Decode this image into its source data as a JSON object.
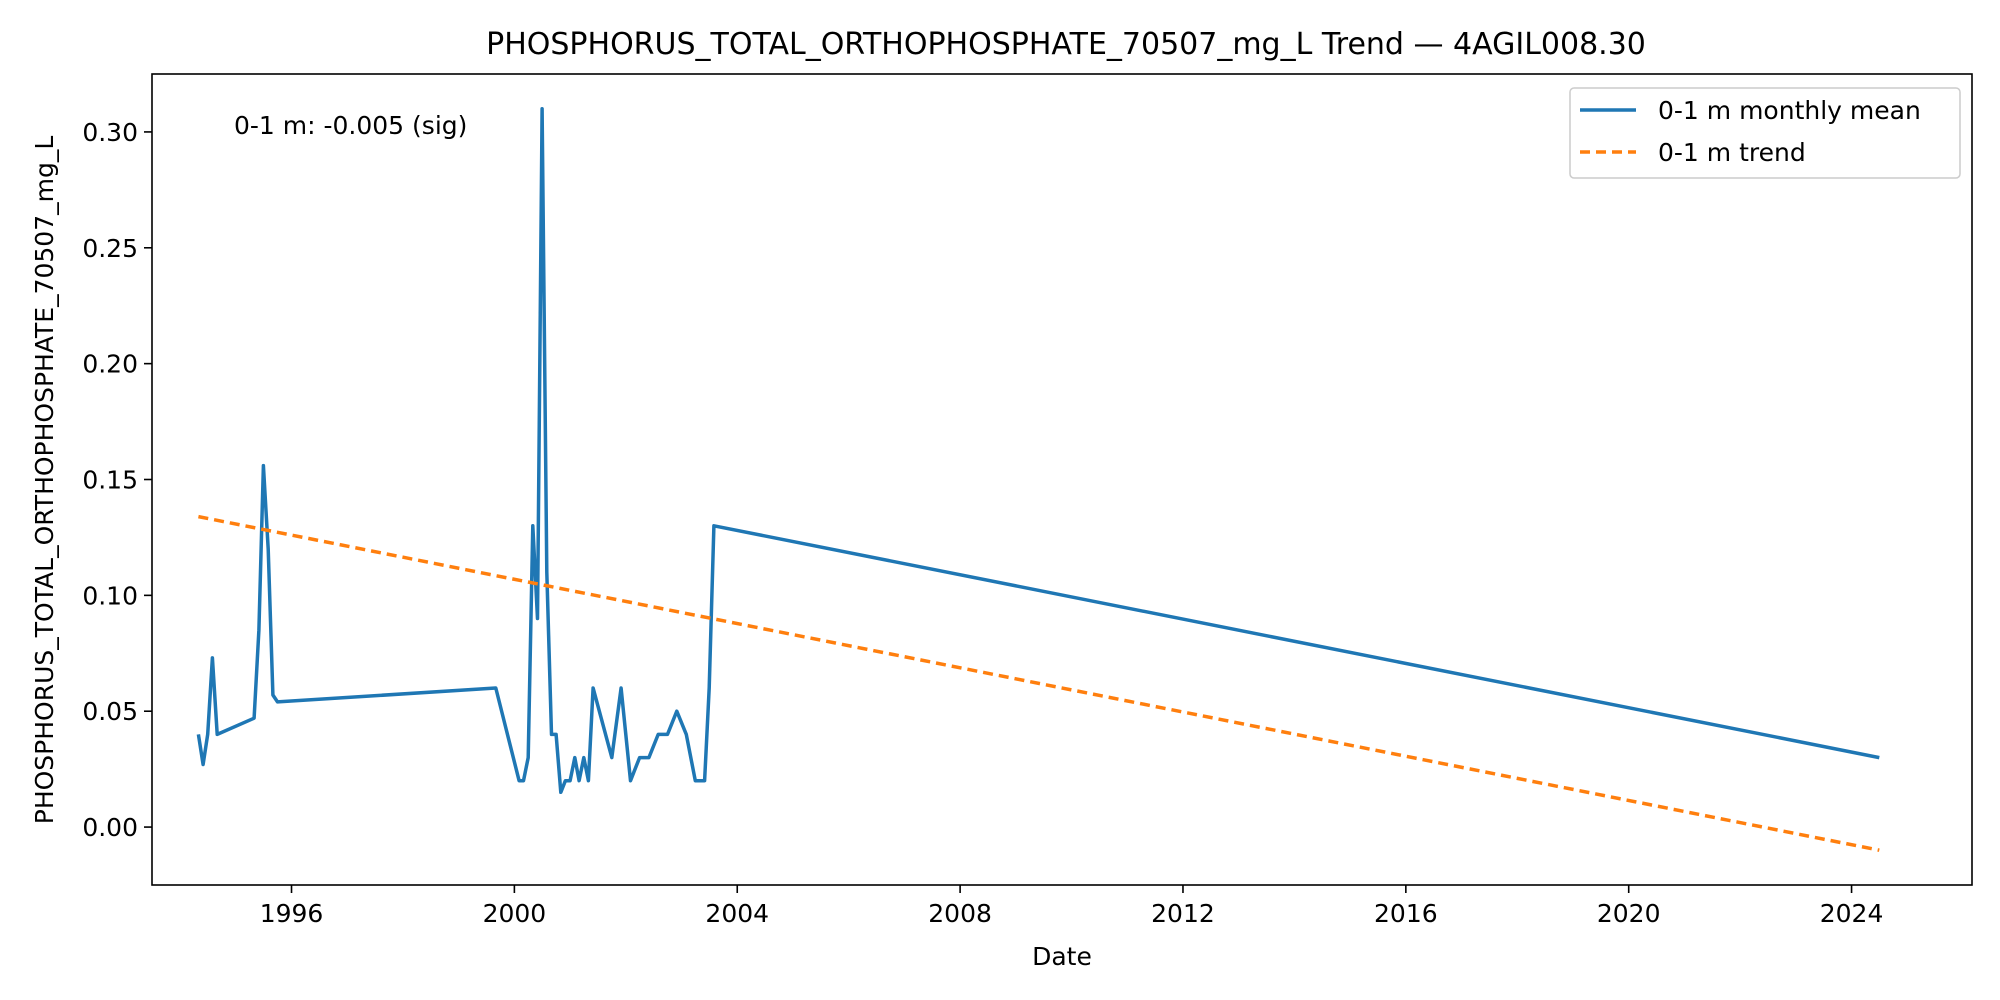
{
  "chart_data": {
    "type": "line",
    "title": "PHOSPHORUS_TOTAL_ORTHOPHOSPHATE_70507_mg_L Trend — 4AGIL008.30",
    "xlabel": "Date",
    "ylabel": "PHOSPHORUS_TOTAL_ORTHOPHOSPHATE_70507_mg_L",
    "xlim": [
      "1993-07-01",
      "2026-03-01"
    ],
    "ylim": [
      -0.025,
      0.325
    ],
    "x_ticks": [
      "1996-01-01",
      "2000-01-01",
      "2004-01-01",
      "2008-01-01",
      "2012-01-01",
      "2016-01-01",
      "2020-01-01",
      "2024-01-01"
    ],
    "x_tick_labels": [
      "1996",
      "2000",
      "2004",
      "2008",
      "2012",
      "2016",
      "2020",
      "2024"
    ],
    "y_ticks": [
      0.0,
      0.05,
      0.1,
      0.15,
      0.2,
      0.25,
      0.3
    ],
    "y_tick_labels": [
      "0.00",
      "0.05",
      "0.10",
      "0.15",
      "0.20",
      "0.25",
      "0.30"
    ],
    "grid": false,
    "legend": "top-right",
    "annotation": "0-1 m: -0.005 (sig)",
    "series": [
      {
        "name": "0-1 m monthly mean",
        "color": "#1f77b4",
        "style": "solid",
        "points": [
          [
            "1994-05-01",
            0.04
          ],
          [
            "1994-06-01",
            0.027
          ],
          [
            "1994-07-01",
            0.04
          ],
          [
            "1994-08-01",
            0.073
          ],
          [
            "1994-09-01",
            0.04
          ],
          [
            "1995-05-01",
            0.047
          ],
          [
            "1995-06-01",
            0.085
          ],
          [
            "1995-07-01",
            0.156
          ],
          [
            "1995-08-01",
            0.12
          ],
          [
            "1995-09-01",
            0.057
          ],
          [
            "1995-10-01",
            0.054
          ],
          [
            "1999-09-01",
            0.06
          ],
          [
            "2000-02-01",
            0.02
          ],
          [
            "2000-03-01",
            0.02
          ],
          [
            "2000-04-01",
            0.03
          ],
          [
            "2000-05-01",
            0.13
          ],
          [
            "2000-06-01",
            0.09
          ],
          [
            "2000-07-01",
            0.31
          ],
          [
            "2000-08-01",
            0.11
          ],
          [
            "2000-09-01",
            0.04
          ],
          [
            "2000-10-01",
            0.04
          ],
          [
            "2000-11-01",
            0.015
          ],
          [
            "2000-12-01",
            0.02
          ],
          [
            "2001-01-01",
            0.02
          ],
          [
            "2001-02-01",
            0.03
          ],
          [
            "2001-03-01",
            0.02
          ],
          [
            "2001-04-01",
            0.03
          ],
          [
            "2001-05-01",
            0.02
          ],
          [
            "2001-06-01",
            0.06
          ],
          [
            "2001-10-01",
            0.03
          ],
          [
            "2001-12-01",
            0.06
          ],
          [
            "2002-01-01",
            0.04
          ],
          [
            "2002-02-01",
            0.02
          ],
          [
            "2002-04-01",
            0.03
          ],
          [
            "2002-06-01",
            0.03
          ],
          [
            "2002-08-01",
            0.04
          ],
          [
            "2002-10-01",
            0.04
          ],
          [
            "2002-12-01",
            0.05
          ],
          [
            "2003-02-01",
            0.04
          ],
          [
            "2003-04-01",
            0.02
          ],
          [
            "2003-06-01",
            0.02
          ],
          [
            "2003-07-01",
            0.06
          ],
          [
            "2003-08-01",
            0.13
          ],
          [
            "2024-07-01",
            0.03
          ]
        ]
      },
      {
        "name": "0-1 m trend",
        "color": "#ff7f0e",
        "style": "dashed",
        "points": [
          [
            "1994-05-01",
            0.134
          ],
          [
            "2024-07-01",
            -0.01
          ]
        ]
      }
    ]
  }
}
